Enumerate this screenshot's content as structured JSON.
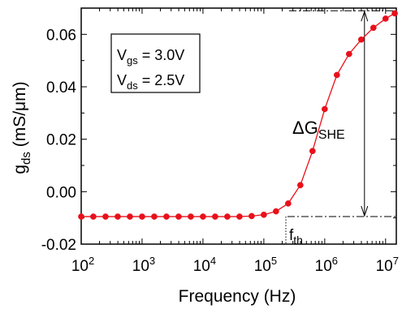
{
  "chart_data": {
    "type": "line",
    "xlabel": "Frequency (Hz)",
    "ylabel": {
      "main": "g",
      "sub": "ds",
      "unit": " (mS/μm)"
    },
    "xscale": "log",
    "xlim": [
      100,
      15000000
    ],
    "ylim": [
      -0.02,
      0.07
    ],
    "x_ticks": [
      {
        "value": 100,
        "base": "10",
        "exp": "2"
      },
      {
        "value": 1000,
        "base": "10",
        "exp": "3"
      },
      {
        "value": 10000,
        "base": "10",
        "exp": "4"
      },
      {
        "value": 100000,
        "base": "10",
        "exp": "5"
      },
      {
        "value": 1000000,
        "base": "10",
        "exp": "6"
      },
      {
        "value": 10000000,
        "base": "10",
        "exp": "7"
      }
    ],
    "y_ticks": [
      {
        "value": -0.02,
        "label": "-0.02"
      },
      {
        "value": 0.0,
        "label": "0.00"
      },
      {
        "value": 0.02,
        "label": "0.02"
      },
      {
        "value": 0.04,
        "label": "0.04"
      },
      {
        "value": 0.06,
        "label": "0.06"
      }
    ],
    "grid": false,
    "series": [
      {
        "color": "#e8101a",
        "marker": "circle",
        "x": [
          100,
          158,
          251,
          398,
          631,
          1000,
          1585,
          2512,
          3981,
          6310,
          10000,
          15849,
          25119,
          39811,
          63096,
          100000,
          158489,
          251189,
          398107,
          630957,
          1000000,
          1584893,
          2511886,
          3981072,
          6309573,
          10000000,
          14125375
        ],
        "y": [
          -0.0095,
          -0.0095,
          -0.0095,
          -0.0095,
          -0.0095,
          -0.0095,
          -0.0095,
          -0.0095,
          -0.0095,
          -0.0095,
          -0.0095,
          -0.0095,
          -0.0095,
          -0.0095,
          -0.0093,
          -0.0088,
          -0.0075,
          -0.0045,
          0.0025,
          0.0155,
          0.0315,
          0.0445,
          0.0525,
          0.058,
          0.0625,
          0.066,
          0.068
        ]
      }
    ],
    "annotations": {
      "conditions_box": [
        {
          "main": "V",
          "sub": "gs",
          "rest": " = 3.0V"
        },
        {
          "main": "V",
          "sub": "ds",
          "rest": " = 2.5V"
        }
      ],
      "delta_label": {
        "main": "ΔG",
        "sub": "SHE"
      },
      "delta_range": {
        "x": 4500000,
        "y_low": -0.0095,
        "y_high": 0.069
      },
      "threshold_label": {
        "main": "f",
        "sub": "th"
      },
      "threshold_x": 230000
    }
  }
}
